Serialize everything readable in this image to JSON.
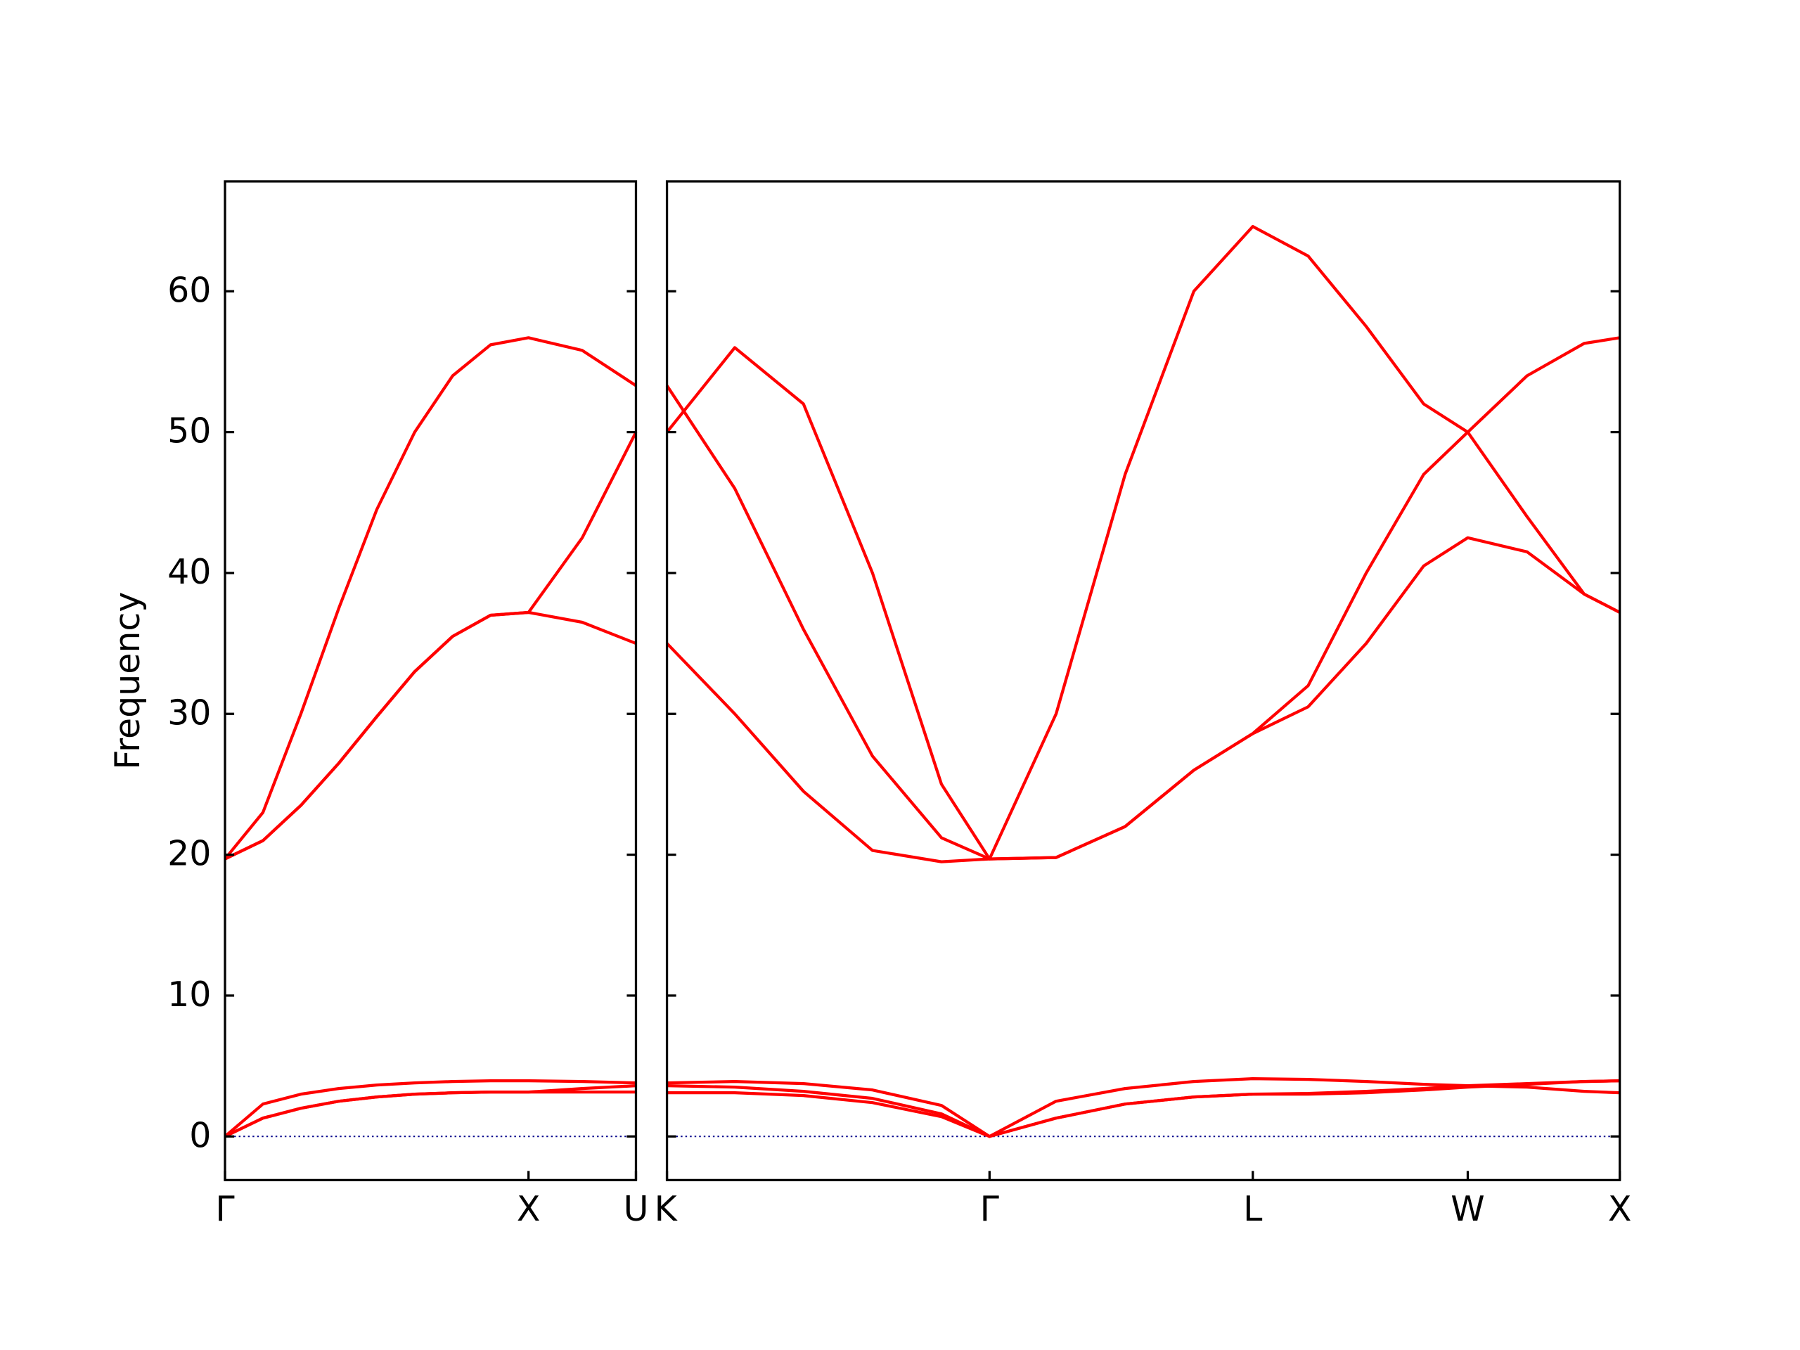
{
  "chart_data": [
    {
      "type": "line",
      "ylabel": "Frequency",
      "color": "#ff0000",
      "x": [
        0,
        0.125,
        0.25,
        0.375,
        0.5,
        0.625,
        0.75,
        0.875,
        1,
        1.177,
        1.354
      ],
      "xlim": [
        0,
        1.354
      ],
      "xticks": [
        {
          "value": 0,
          "label": "Γ"
        },
        {
          "value": 1,
          "label": "X"
        },
        {
          "value": 1.354,
          "label": "U"
        }
      ],
      "ylim": [
        -3.1,
        67.8
      ],
      "yticks": [
        0,
        10,
        20,
        30,
        40,
        50,
        60
      ],
      "show_ytick_labels": true,
      "hline": 0,
      "hline_color": "#00008b",
      "series": [
        {
          "values": [
            19.7,
            23,
            30,
            37.5,
            44.5,
            50,
            54,
            56.2,
            56.7,
            55.8,
            53.3
          ]
        },
        {
          "values": [
            19.7,
            21,
            23.5,
            26.5,
            29.8,
            33,
            35.5,
            37,
            37.2,
            42.5,
            50
          ]
        },
        {
          "values": [
            19.7,
            21,
            23.5,
            26.5,
            29.8,
            33,
            35.5,
            37,
            37.2,
            36.5,
            35
          ]
        },
        {
          "values": [
            0,
            2.3,
            3,
            3.4,
            3.65,
            3.8,
            3.9,
            3.95,
            3.95,
            3.9,
            3.8
          ]
        },
        {
          "values": [
            0,
            1.3,
            2,
            2.5,
            2.8,
            3,
            3.1,
            3.15,
            3.15,
            3.4,
            3.6
          ]
        },
        {
          "values": [
            0,
            1.3,
            2,
            2.5,
            2.8,
            3,
            3.1,
            3.15,
            3.15,
            3.15,
            3.15
          ]
        }
      ]
    },
    {
      "type": "line",
      "color": "#ff0000",
      "x": [
        1.354,
        1.577,
        1.803,
        2.03,
        2.257,
        2.415,
        2.634,
        2.861,
        3.087,
        3.281,
        3.463,
        3.654,
        3.843,
        3.988,
        4.183,
        4.371,
        4.488
      ],
      "xlim": [
        1.354,
        4.488
      ],
      "xticks": [
        {
          "value": 1.354,
          "label": "K"
        },
        {
          "value": 2.415,
          "label": "Γ"
        },
        {
          "value": 3.281,
          "label": "L"
        },
        {
          "value": 3.988,
          "label": "W"
        },
        {
          "value": 4.488,
          "label": "X"
        }
      ],
      "ylim": [
        -3.1,
        67.8
      ],
      "yticks": [
        0,
        10,
        20,
        30,
        40,
        50,
        60
      ],
      "show_ytick_labels": false,
      "hline": 0,
      "hline_color": "#00008b",
      "series": [
        {
          "values": [
            50,
            56,
            52,
            40,
            25,
            19.7,
            30,
            47,
            60,
            64.6,
            62.5,
            57.5,
            52,
            50,
            44,
            38.5,
            37.2
          ]
        },
        {
          "values": [
            53.3,
            46,
            36,
            27,
            21.2,
            19.7,
            19.8,
            22,
            26,
            28.6,
            32,
            40,
            47,
            50,
            54,
            56.3,
            56.7
          ]
        },
        {
          "values": [
            35,
            30,
            24.5,
            20.3,
            19.5,
            19.7,
            19.8,
            22,
            26,
            28.6,
            30.5,
            35,
            40.5,
            42.5,
            41.5,
            38.5,
            37.2
          ]
        },
        {
          "values": [
            3.8,
            3.9,
            3.75,
            3.3,
            2.2,
            0,
            2.5,
            3.4,
            3.9,
            4.1,
            4.05,
            3.9,
            3.7,
            3.6,
            3.75,
            3.9,
            3.95
          ]
        },
        {
          "values": [
            3.6,
            3.5,
            3.2,
            2.7,
            1.6,
            0,
            1.3,
            2.3,
            2.8,
            3,
            3.05,
            3.2,
            3.4,
            3.6,
            3.5,
            3.2,
            3.1
          ]
        },
        {
          "values": [
            3.1,
            3.1,
            2.9,
            2.4,
            1.4,
            0,
            1.3,
            2.3,
            2.8,
            3,
            3,
            3.1,
            3.3,
            3.5,
            3.7,
            3.9,
            3.95
          ]
        }
      ]
    }
  ]
}
